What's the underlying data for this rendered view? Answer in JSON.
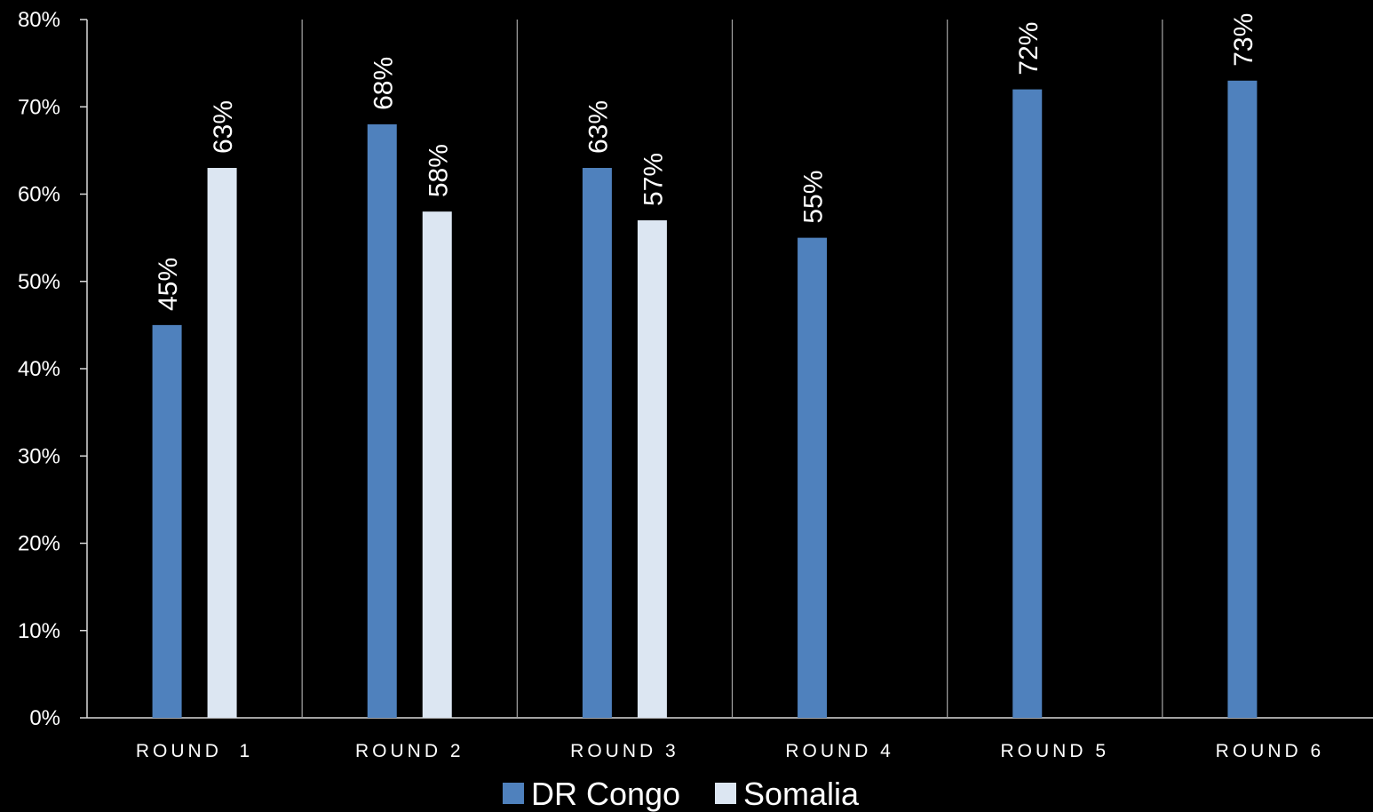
{
  "chart_data": {
    "type": "bar",
    "categories": [
      "ROUND  1",
      "ROUND 2",
      "ROUND 3",
      "ROUND 4",
      "ROUND 5",
      "ROUND 6"
    ],
    "series": [
      {
        "name": "DR Congo",
        "color": "#4f81bd",
        "values": [
          45,
          68,
          63,
          55,
          72,
          73
        ],
        "labels": [
          "45%",
          "68%",
          "63%",
          "55%",
          "72%",
          "73%"
        ]
      },
      {
        "name": "Somalia",
        "color": "#dce6f2",
        "values": [
          63,
          58,
          57,
          null,
          null,
          null
        ],
        "labels": [
          "63%",
          "58%",
          "57%",
          null,
          null,
          null
        ]
      }
    ],
    "ylim": [
      0,
      80
    ],
    "yticks": [
      "0%",
      "10%",
      "20%",
      "30%",
      "40%",
      "50%",
      "60%",
      "70%",
      "80%"
    ],
    "legend_position": "bottom-center",
    "grid": "vertical category separators"
  }
}
